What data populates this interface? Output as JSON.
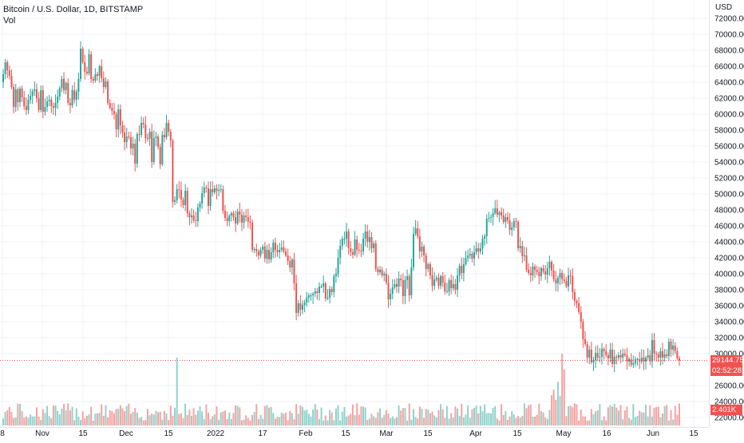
{
  "header": {
    "symbol_line": "Bitcoin / U.S. Dollar, 1D, BITSTAMP",
    "indicator_label": "Vol"
  },
  "axis": {
    "currency": "USD",
    "price_ticks": [
      "72000.00",
      "70000.00",
      "68000.00",
      "66000.00",
      "64000.00",
      "62000.00",
      "60000.00",
      "58000.00",
      "56000.00",
      "54000.00",
      "52000.00",
      "50000.00",
      "48000.00",
      "46000.00",
      "44000.00",
      "42000.00",
      "40000.00",
      "38000.00",
      "36000.00",
      "34000.00",
      "32000.00",
      "30000.00",
      "26000.00",
      "24000.00",
      "22000.00"
    ],
    "time_ticks": [
      "8",
      "Nov",
      "15",
      "Dec",
      "15",
      "2022",
      "17",
      "Feb",
      "15",
      "Mar",
      "15",
      "Apr",
      "15",
      "May",
      "16",
      "Jun",
      "15"
    ]
  },
  "price_tag": {
    "last": "29144.75",
    "countdown": "02:52:28",
    "volume": "2.401K"
  },
  "colors": {
    "up": "#26a69a",
    "down": "#ef5350",
    "up_vol": "#8fd3cc",
    "down_vol": "#f5a3a1",
    "grid": "#f0f3fa",
    "text": "#131722"
  },
  "chart_data": {
    "type": "candlestick",
    "title": "Bitcoin / U.S. Dollar, 1D, BITSTAMP",
    "y_unit": "USD",
    "ylim": [
      21500,
      73000
    ],
    "closes": [
      65000,
      66500,
      65500,
      64800,
      63400,
      60900,
      63100,
      61500,
      63200,
      62100,
      61000,
      60500,
      61800,
      62300,
      62900,
      63100,
      62000,
      60500,
      63000,
      60300,
      60900,
      61600,
      61800,
      61000,
      60800,
      61400,
      62200,
      63300,
      64400,
      63000,
      63900,
      61400,
      61100,
      63000,
      61800,
      62800,
      64400,
      68200,
      66500,
      65300,
      65100,
      67500,
      64400,
      64200,
      65000,
      64800,
      66000,
      64500,
      63400,
      64100,
      61400,
      60800,
      60400,
      60000,
      58100,
      60600,
      58600,
      57700,
      56500,
      57200,
      57100,
      55700,
      56300,
      53800,
      57500,
      57400,
      58900,
      58700,
      57000,
      56900,
      57800,
      54000,
      57000,
      57200,
      55900,
      53700,
      57400,
      57100,
      58900,
      57800,
      56700,
      49000,
      49200,
      50600,
      50500,
      49300,
      48600,
      50400,
      47600,
      47100,
      47300,
      46700,
      46600,
      48300,
      48800,
      50100,
      50800,
      50700,
      48500,
      50600,
      50200,
      50700,
      50400,
      50500,
      50600,
      47900,
      47000,
      46600,
      47300,
      47600,
      47100,
      46300,
      47800,
      47400,
      46400,
      47300,
      47100,
      46500,
      46400,
      43000,
      43100,
      42800,
      42300,
      43000,
      43400,
      41900,
      43000,
      41800,
      42700,
      43900,
      43000,
      42700,
      43000,
      43300,
      42800,
      42300,
      41600,
      40800,
      41800,
      38800,
      35100,
      36300,
      35500,
      36100,
      36400,
      37000,
      37300,
      37300,
      37500,
      37800,
      37600,
      38400,
      38400,
      38800,
      36900,
      37000,
      38100,
      37700,
      39700,
      40000,
      42000,
      43500,
      44400,
      44400,
      45300,
      43200,
      42700,
      42400,
      44300,
      43000,
      42900,
      42800,
      44400,
      45300,
      44000,
      44600,
      43200,
      43800,
      40600,
      40200,
      40500,
      39800,
      40000,
      38900,
      36800,
      37500,
      38300,
      38700,
      38400,
      39400,
      39200,
      37200,
      39200,
      39700,
      37300,
      40800,
      45000,
      45700,
      44700,
      42800,
      43400,
      42300,
      40600,
      41200,
      39800,
      38500,
      39300,
      39500,
      38500,
      39700,
      38900,
      37800,
      37800,
      39200,
      38200,
      38700,
      38000,
      39800,
      41000,
      40100,
      41200,
      42000,
      42300,
      42500,
      41900,
      42700,
      43200,
      42800,
      43200,
      44400,
      44700,
      46900,
      47000,
      47100,
      47600,
      48200,
      47400,
      47700,
      47300,
      46500,
      47100,
      46700,
      45500,
      45800,
      46600,
      46500,
      43200,
      43500,
      42200,
      42300,
      40500,
      40100,
      39800,
      40900,
      40500,
      40200,
      39700,
      40700,
      40300,
      39900,
      40700,
      41500,
      40400,
      39300,
      38800,
      39500,
      40100,
      39300,
      39100,
      38400,
      39800,
      39700,
      37700,
      36600,
      36300,
      35200,
      34000,
      31800,
      31200,
      29500,
      30500,
      28900,
      29200,
      30100,
      29500,
      29600,
      30600,
      30300,
      29800,
      29400,
      30500,
      28700,
      29600,
      29500,
      29800,
      29500,
      30000,
      29800,
      29000,
      29300,
      28600,
      28800,
      29300,
      29300,
      29000,
      29500,
      29000,
      29500,
      29800,
      29000,
      31700,
      30000,
      29900,
      29500,
      30300,
      29500,
      29900,
      29700,
      31500,
      30500,
      31000,
      30300,
      29400,
      29144.75
    ],
    "volume_axis_tick": "2.401K"
  }
}
